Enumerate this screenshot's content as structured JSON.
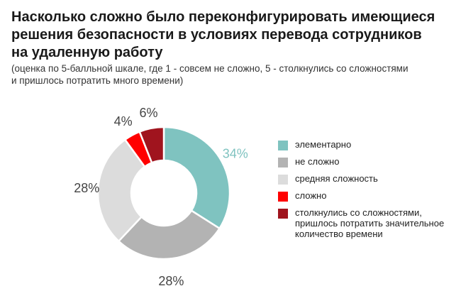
{
  "chart_data": {
    "type": "pie",
    "title": "Насколько сложно было переконфигурировать имеющиеся решения безопасности в условиях перевода сотрудников на удаленную работу",
    "subtitle": "(оценка по 5-балльной шкале, где 1 - совсем не сложно, 5 - столкнулись со сложностями и пришлось потратить много времени)",
    "legend_position": "right",
    "slices": [
      {
        "label": "элементарно",
        "value": 34,
        "value_label": "34%",
        "color": "#7fc3c0"
      },
      {
        "label": "не сложно",
        "value": 28,
        "value_label": "28%",
        "color": "#b3b3b3"
      },
      {
        "label": "средняя сложность",
        "value": 28,
        "value_label": "28%",
        "color": "#dcdcdc"
      },
      {
        "label": "сложно",
        "value": 4,
        "value_label": "4%",
        "color": "#ff0000"
      },
      {
        "label": "столкнулись со сложностями, пришлось потратить значительное количество времени",
        "value": 6,
        "value_label": "6%",
        "color": "#a0141e"
      }
    ]
  }
}
